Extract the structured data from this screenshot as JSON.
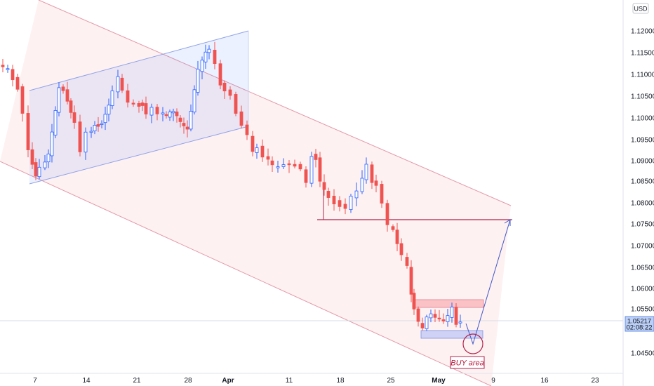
{
  "chart_data": {
    "type": "candlestick",
    "currency": "USD",
    "y_ticks": [
      "1.12000",
      "1.11500",
      "1.11000",
      "1.10500",
      "1.10000",
      "1.09500",
      "1.09000",
      "1.08500",
      "1.08000",
      "1.07500",
      "1.07000",
      "1.06500",
      "1.06000",
      "1.05500",
      "1.04500"
    ],
    "x_ticks": [
      {
        "label": "7",
        "bold": false
      },
      {
        "label": "14",
        "bold": false
      },
      {
        "label": "21",
        "bold": false
      },
      {
        "label": "28",
        "bold": false
      },
      {
        "label": "Apr",
        "bold": true
      },
      {
        "label": "11",
        "bold": false
      },
      {
        "label": "18",
        "bold": false
      },
      {
        "label": "25",
        "bold": false
      },
      {
        "label": "May",
        "bold": true
      },
      {
        "label": "9",
        "bold": false
      },
      {
        "label": "16",
        "bold": false
      },
      {
        "label": "23",
        "bold": false
      }
    ],
    "last_price": "1.05217",
    "countdown": "02:08:22",
    "annotation": "BUY area",
    "colors": {
      "up": "#2962ff",
      "down": "#ef5350",
      "channel": "#f2b8c6",
      "bull_channel": "#7b8fe0",
      "resistance": "#b2244d"
    }
  }
}
